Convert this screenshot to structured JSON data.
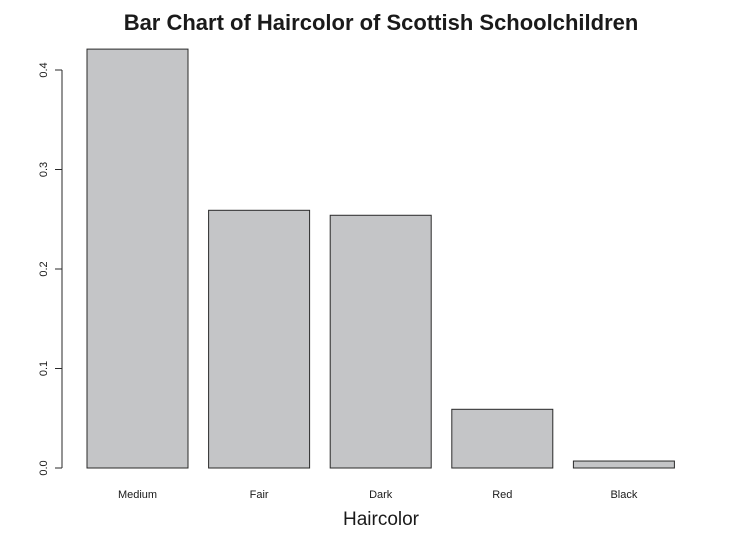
{
  "chart_data": {
    "type": "bar",
    "title": "Bar Chart of Haircolor of Scottish Schoolchildren",
    "xlabel": "Haircolor",
    "ylabel": "",
    "categories": [
      "Medium",
      "Fair",
      "Dark",
      "Red",
      "Black"
    ],
    "values": [
      0.421,
      0.259,
      0.254,
      0.059,
      0.007
    ],
    "ylim": [
      0,
      0.44
    ],
    "yticks": [
      0.0,
      0.1,
      0.2,
      0.3,
      0.4
    ],
    "ytick_labels": [
      "0.0",
      "0.1",
      "0.2",
      "0.3",
      "0.4"
    ],
    "grid": false,
    "bar_color": "#c4c5c7",
    "bar_edge_color": "#2a2a2a"
  }
}
